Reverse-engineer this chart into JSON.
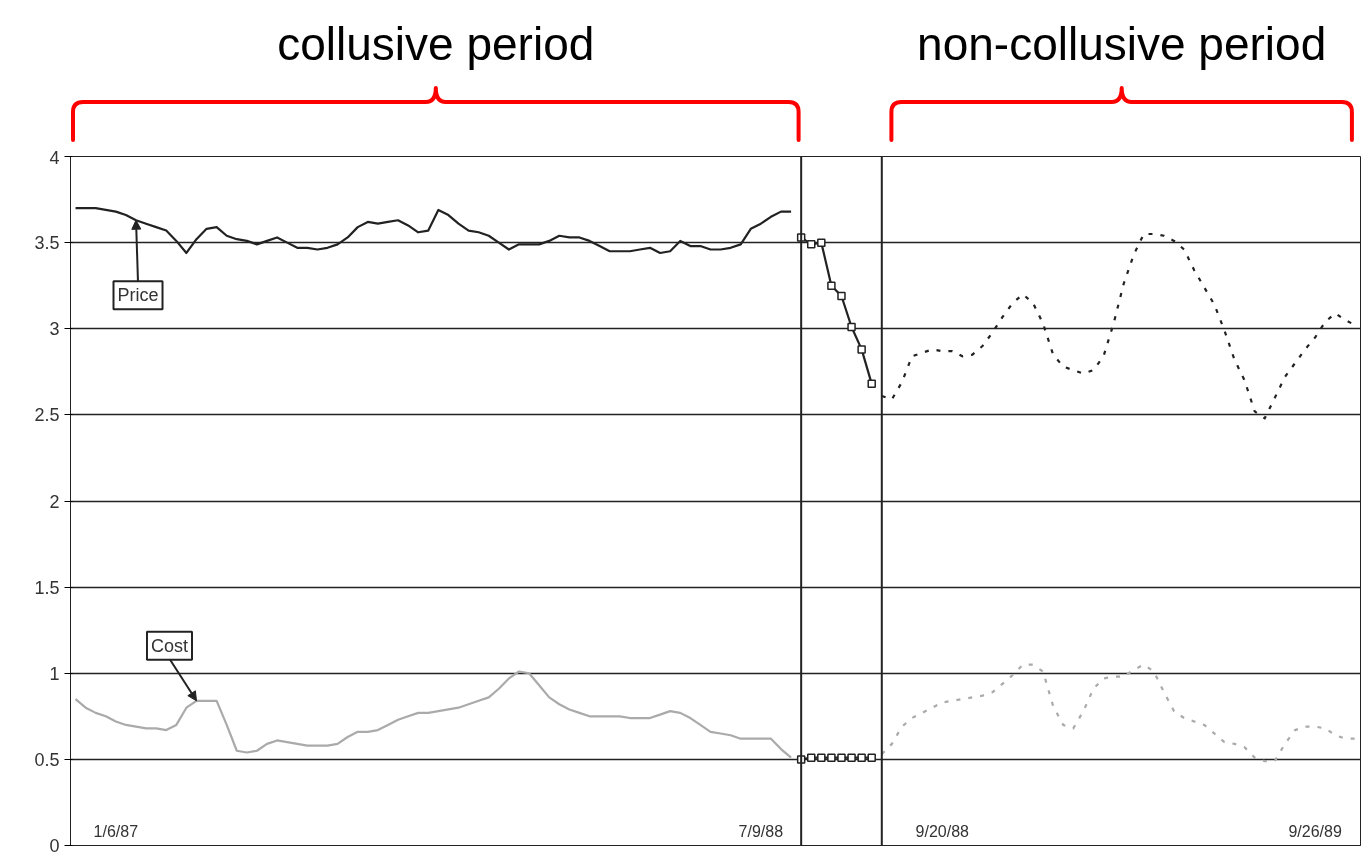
{
  "chart_data": {
    "type": "line",
    "categories": [
      null,
      null,
      null,
      null,
      "1/6/87",
      null,
      null,
      null,
      null,
      null,
      null,
      null,
      null,
      null,
      null,
      null,
      null,
      null,
      null,
      null,
      null,
      null,
      null,
      null,
      null,
      null,
      null,
      null,
      null,
      null,
      null,
      null,
      null,
      null,
      null,
      null,
      null,
      null,
      null,
      null,
      null,
      null,
      null,
      null,
      null,
      null,
      null,
      null,
      null,
      null,
      null,
      null,
      null,
      null,
      null,
      null,
      null,
      null,
      null,
      null,
      null,
      null,
      null,
      null,
      null,
      null,
      null,
      null,
      "7/9/88",
      null,
      null,
      null,
      null,
      null,
      null,
      null,
      null,
      null,
      null,
      null,
      null,
      null,
      null,
      null,
      null,
      null,
      "9/20/88",
      null,
      null,
      null,
      null,
      null,
      null,
      null,
      null,
      null,
      null,
      null,
      null,
      null,
      null,
      null,
      null,
      null,
      null,
      null,
      null,
      null,
      null,
      null,
      null,
      null,
      null,
      null,
      null,
      null,
      null,
      null,
      null,
      null,
      null,
      null,
      null,
      "9/26/89",
      null,
      null,
      null,
      null
    ],
    "ylim": [
      0,
      4
    ],
    "yticks": [
      0,
      0.5,
      1,
      1.5,
      2,
      2.5,
      3,
      3.5,
      4
    ],
    "grid": "y",
    "series": [
      {
        "name": "Price",
        "color": "#222222",
        "line_style": "solid",
        "values": [
          3.7,
          3.7,
          3.7,
          3.69,
          3.68,
          3.66,
          3.63,
          3.61,
          3.59,
          3.57,
          3.51,
          3.44,
          3.52,
          3.58,
          3.59,
          3.54,
          3.52,
          3.51,
          3.49,
          3.51,
          3.53,
          3.5,
          3.47,
          3.47,
          3.46,
          3.47,
          3.49,
          3.53,
          3.59,
          3.62,
          3.61,
          3.62,
          3.63,
          3.6,
          3.56,
          3.57,
          3.69,
          3.66,
          3.61,
          3.57,
          3.56,
          3.54,
          3.5,
          3.46,
          3.49,
          3.49,
          3.49,
          3.51,
          3.54,
          3.53,
          3.53,
          3.51,
          3.48,
          3.45,
          3.45,
          3.45,
          3.46,
          3.47,
          3.44,
          3.45,
          3.51,
          3.48,
          3.48,
          3.46,
          3.46,
          3.47,
          3.49,
          3.58,
          3.61,
          3.65,
          3.68,
          3.68,
          null,
          null,
          null,
          null,
          null,
          null,
          null,
          null,
          null,
          null,
          null,
          null,
          null,
          null,
          null,
          null,
          null,
          null,
          null,
          null,
          null,
          null,
          null,
          null,
          null,
          null,
          null,
          null,
          null,
          null,
          null,
          null,
          null,
          null,
          null,
          null,
          null,
          null,
          null,
          null,
          null,
          null,
          null,
          null,
          null,
          null,
          null,
          null,
          null,
          null,
          null,
          null,
          null,
          null,
          null,
          null
        ]
      },
      {
        "color": "#222222",
        "line_style": "solid",
        "marker": "square",
        "values": [
          null,
          null,
          null,
          null,
          null,
          null,
          null,
          null,
          null,
          null,
          null,
          null,
          null,
          null,
          null,
          null,
          null,
          null,
          null,
          null,
          null,
          null,
          null,
          null,
          null,
          null,
          null,
          null,
          null,
          null,
          null,
          null,
          null,
          null,
          null,
          null,
          null,
          null,
          null,
          null,
          null,
          null,
          null,
          null,
          null,
          null,
          null,
          null,
          null,
          null,
          null,
          null,
          null,
          null,
          null,
          null,
          null,
          null,
          null,
          null,
          null,
          null,
          null,
          null,
          null,
          null,
          null,
          null,
          null,
          null,
          null,
          null,
          3.53,
          3.49,
          3.5,
          3.25,
          3.19,
          3.01,
          2.88,
          2.68,
          null,
          null,
          null,
          null,
          null,
          null,
          null,
          null,
          null,
          null,
          null,
          null,
          null,
          null,
          null,
          null,
          null,
          null,
          null,
          null,
          null,
          null,
          null,
          null,
          null,
          null,
          null,
          null,
          null,
          null,
          null,
          null,
          null,
          null,
          null,
          null,
          null,
          null,
          null,
          null,
          null,
          null,
          null,
          null,
          null,
          null,
          null,
          null
        ]
      },
      {
        "color": "#222222",
        "line_style": "dashed",
        "values": [
          null,
          null,
          null,
          null,
          null,
          null,
          null,
          null,
          null,
          null,
          null,
          null,
          null,
          null,
          null,
          null,
          null,
          null,
          null,
          null,
          null,
          null,
          null,
          null,
          null,
          null,
          null,
          null,
          null,
          null,
          null,
          null,
          null,
          null,
          null,
          null,
          null,
          null,
          null,
          null,
          null,
          null,
          null,
          null,
          null,
          null,
          null,
          null,
          null,
          null,
          null,
          null,
          null,
          null,
          null,
          null,
          null,
          null,
          null,
          null,
          null,
          null,
          null,
          null,
          null,
          null,
          null,
          null,
          null,
          null,
          null,
          null,
          null,
          null,
          null,
          null,
          null,
          null,
          null,
          null,
          2.61,
          2.59,
          2.69,
          2.84,
          2.86,
          2.88,
          2.87,
          2.87,
          2.84,
          2.85,
          2.9,
          2.98,
          3.07,
          3.15,
          3.2,
          3.15,
          3.03,
          2.85,
          2.78,
          2.76,
          2.74,
          2.76,
          2.84,
          3.03,
          3.26,
          3.43,
          3.55,
          3.55,
          3.54,
          3.51,
          3.46,
          3.34,
          3.24,
          3.14,
          2.99,
          2.82,
          2.7,
          2.52,
          2.48,
          2.6,
          2.72,
          2.8,
          2.88,
          2.95,
          3.04,
          3.09,
          3.05,
          3.02
        ]
      },
      {
        "name": "Cost",
        "color": "#aaaaaa",
        "line_style": "solid",
        "values": [
          0.85,
          0.8,
          0.77,
          0.75,
          0.72,
          0.7,
          0.69,
          0.68,
          0.68,
          0.67,
          0.7,
          0.8,
          0.84,
          0.84,
          0.84,
          0.7,
          0.55,
          0.54,
          0.55,
          0.59,
          0.61,
          0.6,
          0.59,
          0.58,
          0.58,
          0.58,
          0.59,
          0.63,
          0.66,
          0.66,
          0.67,
          0.7,
          0.73,
          0.75,
          0.77,
          0.77,
          0.78,
          0.79,
          0.8,
          0.82,
          0.84,
          0.86,
          0.91,
          0.97,
          1.01,
          1,
          0.93,
          0.86,
          0.82,
          0.79,
          0.77,
          0.75,
          0.75,
          0.75,
          0.75,
          0.74,
          0.74,
          0.74,
          0.76,
          0.78,
          0.77,
          0.74,
          0.7,
          0.66,
          0.65,
          0.64,
          0.62,
          0.62,
          0.62,
          0.62,
          0.56,
          0.51,
          null,
          null,
          null,
          null,
          null,
          null,
          null,
          null,
          null,
          null,
          null,
          null,
          null,
          null,
          null,
          null,
          null,
          null,
          null,
          null,
          null,
          null,
          null,
          null,
          null,
          null,
          null,
          null,
          null,
          null,
          null,
          null,
          null,
          null,
          null,
          null,
          null,
          null,
          null,
          null,
          null,
          null,
          null,
          null,
          null,
          null,
          null,
          null,
          null,
          null,
          null,
          null,
          null,
          null,
          null,
          null
        ]
      },
      {
        "color": "#222222",
        "line_style": "solid",
        "marker": "square",
        "values": [
          null,
          null,
          null,
          null,
          null,
          null,
          null,
          null,
          null,
          null,
          null,
          null,
          null,
          null,
          null,
          null,
          null,
          null,
          null,
          null,
          null,
          null,
          null,
          null,
          null,
          null,
          null,
          null,
          null,
          null,
          null,
          null,
          null,
          null,
          null,
          null,
          null,
          null,
          null,
          null,
          null,
          null,
          null,
          null,
          null,
          null,
          null,
          null,
          null,
          null,
          null,
          null,
          null,
          null,
          null,
          null,
          null,
          null,
          null,
          null,
          null,
          null,
          null,
          null,
          null,
          null,
          null,
          null,
          null,
          null,
          null,
          null,
          0.5,
          0.51,
          0.51,
          0.51,
          0.51,
          0.51,
          0.51,
          0.51,
          null,
          null,
          null,
          null,
          null,
          null,
          null,
          null,
          null,
          null,
          null,
          null,
          null,
          null,
          null,
          null,
          null,
          null,
          null,
          null,
          null,
          null,
          null,
          null,
          null,
          null,
          null,
          null,
          null,
          null,
          null,
          null,
          null,
          null,
          null,
          null,
          null,
          null,
          null,
          null,
          null,
          null,
          null,
          null,
          null,
          null,
          null,
          null
        ]
      },
      {
        "color": "#aaaaaa",
        "line_style": "dashed",
        "values": [
          null,
          null,
          null,
          null,
          null,
          null,
          null,
          null,
          null,
          null,
          null,
          null,
          null,
          null,
          null,
          null,
          null,
          null,
          null,
          null,
          null,
          null,
          null,
          null,
          null,
          null,
          null,
          null,
          null,
          null,
          null,
          null,
          null,
          null,
          null,
          null,
          null,
          null,
          null,
          null,
          null,
          null,
          null,
          null,
          null,
          null,
          null,
          null,
          null,
          null,
          null,
          null,
          null,
          null,
          null,
          null,
          null,
          null,
          null,
          null,
          null,
          null,
          null,
          null,
          null,
          null,
          null,
          null,
          null,
          null,
          null,
          null,
          null,
          null,
          null,
          null,
          null,
          null,
          null,
          null,
          0.53,
          0.59,
          0.69,
          0.74,
          0.77,
          0.8,
          0.83,
          0.84,
          0.85,
          0.86,
          0.87,
          0.89,
          0.94,
          0.99,
          1.05,
          1.05,
          1.01,
          0.81,
          0.7,
          0.68,
          0.78,
          0.91,
          0.97,
          0.98,
          0.98,
          1.02,
          1.05,
          1.01,
          0.89,
          0.78,
          0.74,
          0.72,
          0.7,
          0.65,
          0.6,
          0.59,
          0.57,
          0.51,
          0.49,
          0.49,
          0.59,
          0.67,
          0.69,
          0.69,
          0.68,
          0.64,
          0.62,
          0.62
        ]
      }
    ],
    "annotations": [
      "collusive period",
      "non-collusive period"
    ]
  }
}
